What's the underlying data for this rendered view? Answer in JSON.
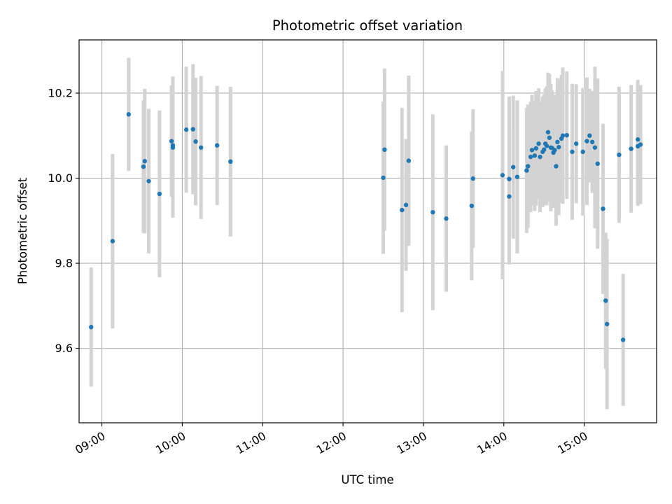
{
  "chart_data": {
    "type": "scatter",
    "title": "Photometric offset variation",
    "xlabel": "UTC time",
    "ylabel": "Photometric offset",
    "x_is_time": true,
    "xlim": [
      "08:43",
      "15:54"
    ],
    "ylim": [
      9.425,
      10.325
    ],
    "xticks": [
      "09:00",
      "10:00",
      "11:00",
      "12:00",
      "13:00",
      "14:00",
      "15:00"
    ],
    "yticks": [
      9.6,
      9.8,
      10.0,
      10.2
    ],
    "ytick_labels": [
      "9.6",
      "9.8",
      "10.0",
      "10.2"
    ],
    "grid": true,
    "colors": {
      "point": "#1f77b4",
      "errorbar": "#d3d3d3",
      "grid": "#b0b0b0",
      "axes": "#000000"
    },
    "series": [
      {
        "x": [
          "08:52",
          "09:08",
          "09:20",
          "09:31",
          "09:32",
          "09:35",
          "09:43",
          "09:52",
          "09:53",
          "09:53",
          "10:03",
          "10:08",
          "10:10",
          "10:14",
          "10:26",
          "10:36",
          "12:30",
          "12:31",
          "12:44",
          "12:47",
          "12:49",
          "13:07",
          "13:17",
          "13:36",
          "13:37",
          "13:59",
          "14:04",
          "14:04",
          "14:07",
          "14:10",
          "14:17",
          "14:18",
          "14:20",
          "14:21",
          "14:23",
          "14:24",
          "14:26",
          "14:27",
          "14:29",
          "14:30",
          "14:31",
          "14:32",
          "14:33",
          "14:34",
          "14:35",
          "14:36",
          "14:37",
          "14:38",
          "14:39",
          "14:40",
          "14:41",
          "14:43",
          "14:44",
          "14:47",
          "14:51",
          "14:54",
          "14:59",
          "15:02",
          "15:04",
          "15:06",
          "15:08",
          "15:10",
          "15:14",
          "15:16",
          "15:17",
          "15:29",
          "15:26",
          "15:35",
          "15:40",
          "15:40",
          "15:42"
        ],
        "y": [
          9.65,
          9.852,
          10.15,
          10.027,
          10.04,
          9.993,
          9.963,
          10.087,
          10.072,
          10.077,
          10.114,
          10.115,
          10.086,
          10.072,
          10.077,
          10.039,
          10.001,
          10.067,
          9.925,
          9.937,
          10.041,
          9.92,
          9.905,
          9.935,
          9.999,
          10.007,
          9.957,
          9.998,
          10.026,
          10.003,
          10.018,
          10.028,
          10.05,
          10.066,
          10.053,
          10.07,
          10.081,
          10.05,
          10.062,
          10.067,
          10.081,
          10.076,
          10.108,
          10.095,
          10.072,
          10.071,
          10.06,
          10.066,
          10.028,
          10.085,
          10.073,
          10.093,
          10.1,
          10.101,
          10.062,
          10.081,
          10.062,
          10.087,
          10.1,
          10.085,
          10.072,
          10.034,
          9.928,
          9.712,
          9.657,
          9.62,
          10.055,
          10.069,
          10.075,
          10.091,
          10.079
        ],
        "yerr": [
          0.14,
          0.205,
          0.133,
          0.156,
          0.17,
          0.17,
          0.196,
          0.131,
          0.165,
          0.162,
          0.148,
          0.153,
          0.15,
          0.168,
          0.14,
          0.176,
          0.179,
          0.191,
          0.24,
          0.155,
          0.2,
          0.23,
          0.172,
          0.175,
          0.163,
          0.245,
          0.16,
          0.194,
          0.168,
          0.18,
          0.147,
          0.145,
          0.13,
          0.13,
          0.13,
          0.135,
          0.13,
          0.13,
          0.13,
          0.13,
          0.13,
          0.14,
          0.14,
          0.15,
          0.15,
          0.135,
          0.13,
          0.13,
          0.14,
          0.15,
          0.16,
          0.15,
          0.16,
          0.15,
          0.16,
          0.14,
          0.15,
          0.15,
          0.11,
          0.12,
          0.19,
          0.2,
          0.2,
          0.16,
          0.2,
          0.155,
          0.16,
          0.15,
          0.14,
          0.14,
          0.14
        ]
      }
    ]
  }
}
